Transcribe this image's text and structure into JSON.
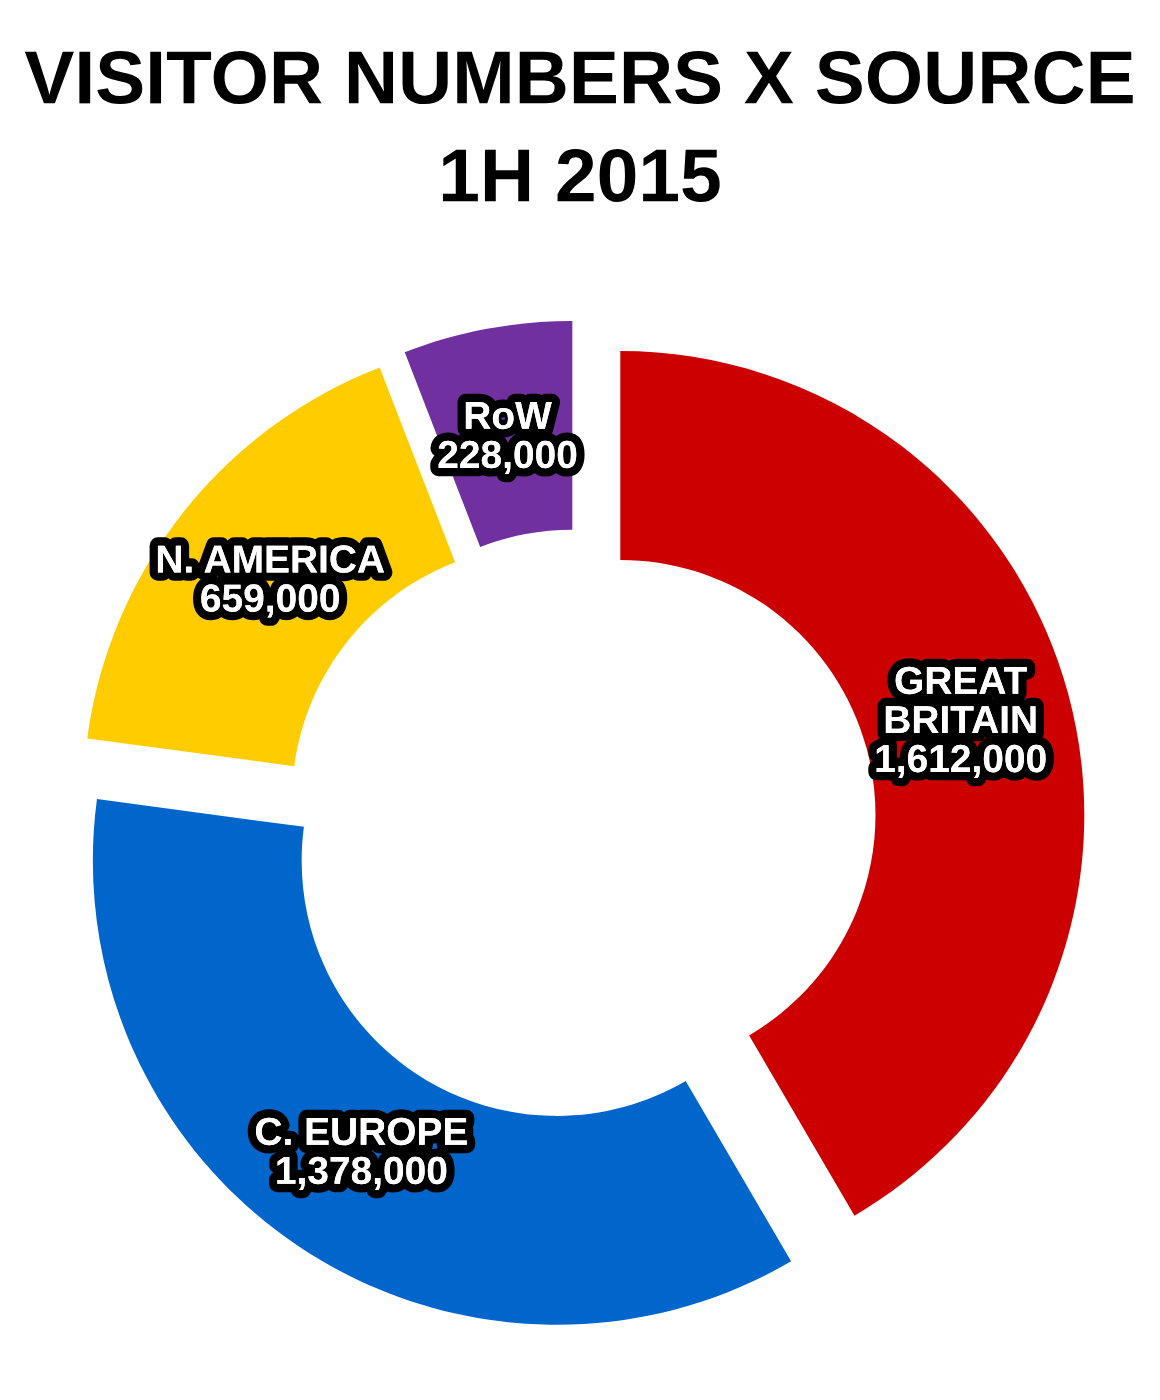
{
  "chart_data": {
    "type": "donut",
    "title": "VISITOR NUMBERS X SOURCE",
    "subtitle": "1H 2015",
    "categories": [
      "GREAT BRITAIN",
      "C. EUROPE",
      "N. AMERICA",
      "RoW"
    ],
    "values": [
      1612000,
      1378000,
      659000,
      228000
    ],
    "value_labels": [
      "1,612,000",
      "1,378,000",
      "659,000",
      "228,000"
    ],
    "colors": [
      "#cc0000",
      "#0066cc",
      "#ffcc00",
      "#7030a0"
    ],
    "legend": false
  }
}
